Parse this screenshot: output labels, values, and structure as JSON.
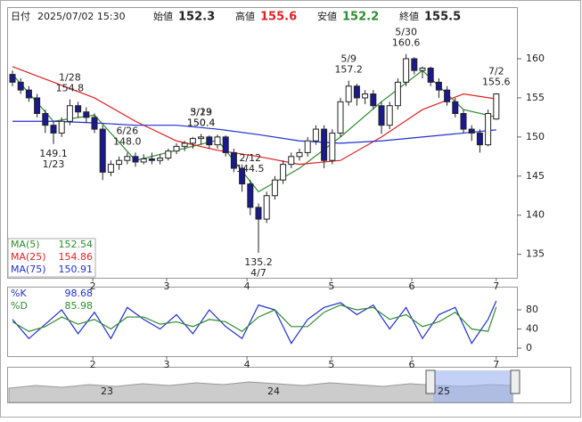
{
  "chart_data": {
    "type": "candlestick",
    "header": {
      "date_label": "日付",
      "datetime": "2025/07/02 15:30",
      "open_label": "始値",
      "open": 152.3,
      "high_label": "高値",
      "high": 155.6,
      "low_label": "安値",
      "low": 152.2,
      "close_label": "終値",
      "close": 155.5
    },
    "up_color": "#ffffff",
    "down_color": "#1a1a8c",
    "candles": [
      [
        158,
        158.5,
        156.5,
        157
      ],
      [
        157,
        157.5,
        155.5,
        156
      ],
      [
        156,
        156.5,
        154.5,
        155
      ],
      [
        155,
        155.5,
        152.5,
        153
      ],
      [
        153,
        153.5,
        150.5,
        151.5
      ],
      [
        151.5,
        152,
        149.1,
        150.5
      ],
      [
        150.5,
        152.5,
        150,
        152
      ],
      [
        152,
        154.8,
        151.5,
        154
      ],
      [
        154,
        154.5,
        152.5,
        153.2
      ],
      [
        153.2,
        153.8,
        151.8,
        152.5
      ],
      [
        152.5,
        153,
        150.5,
        151
      ],
      [
        151,
        151.5,
        144.5,
        145.5
      ],
      [
        145.5,
        147,
        145,
        146.5
      ],
      [
        146.5,
        147.5,
        145.8,
        147
      ],
      [
        147,
        148,
        146.5,
        147.5
      ],
      [
        147.5,
        148,
        146.2,
        146.8
      ],
      [
        146.8,
        147.8,
        146.5,
        147.2
      ],
      [
        147.2,
        148,
        146.5,
        147
      ],
      [
        147,
        147.8,
        146.5,
        147.3
      ],
      [
        147.3,
        148.5,
        147,
        148.2
      ],
      [
        148.2,
        149.2,
        147.8,
        148.8
      ],
      [
        148.8,
        149.5,
        148.2,
        149.2
      ],
      [
        149.2,
        150,
        148.5,
        149.8
      ],
      [
        149.8,
        150.4,
        149,
        150
      ],
      [
        150,
        150.2,
        148.5,
        149
      ],
      [
        149,
        150.3,
        148.5,
        150
      ],
      [
        150,
        150.2,
        147.5,
        148
      ],
      [
        148,
        148.5,
        145.5,
        146
      ],
      [
        146,
        146.5,
        143,
        144
      ],
      [
        144,
        144.5,
        140,
        141
      ],
      [
        141,
        141.5,
        135.2,
        139.5
      ],
      [
        139.5,
        143,
        139,
        142.5
      ],
      [
        142.5,
        145,
        142,
        144.5
      ],
      [
        144.5,
        147,
        144,
        146.5
      ],
      [
        146.5,
        148,
        146,
        147.5
      ],
      [
        147.5,
        148.5,
        147,
        148
      ],
      [
        148,
        150,
        147.5,
        149.5
      ],
      [
        149.5,
        151.5,
        149,
        151
      ],
      [
        151,
        151.5,
        146,
        147
      ],
      [
        147,
        151,
        146.5,
        150.5
      ],
      [
        150.5,
        155,
        150,
        154.5
      ],
      [
        154.5,
        157.2,
        154,
        156.5
      ],
      [
        156.5,
        156.8,
        154,
        155
      ],
      [
        155,
        156,
        154.2,
        155.5
      ],
      [
        155.5,
        156,
        153.5,
        154
      ],
      [
        154,
        154.5,
        150.4,
        151.5
      ],
      [
        151.5,
        154.5,
        151,
        154
      ],
      [
        154,
        157.5,
        153.5,
        157
      ],
      [
        157,
        160.6,
        156.5,
        160
      ],
      [
        160,
        160.2,
        158,
        158.5
      ],
      [
        158.5,
        159,
        157.5,
        158.8
      ],
      [
        158.8,
        159,
        156.5,
        157
      ],
      [
        157,
        157.5,
        155,
        156
      ],
      [
        156,
        156.5,
        154,
        154.5
      ],
      [
        154.5,
        155,
        152.5,
        153
      ],
      [
        153,
        153.5,
        150.5,
        151
      ],
      [
        151,
        151.5,
        149.5,
        150.5
      ],
      [
        150.5,
        151,
        148,
        149
      ],
      [
        149,
        153.5,
        148.8,
        153
      ],
      [
        152.3,
        155.6,
        152.2,
        155.5
      ]
    ],
    "ylim": [
      132,
      166.6
    ],
    "yticks": [
      135,
      140,
      145,
      150,
      155,
      160
    ],
    "xticks": [
      {
        "value": 9.8,
        "label": "2"
      },
      {
        "value": 18.8,
        "label": "3"
      },
      {
        "value": 28.6,
        "label": "4"
      },
      {
        "value": 38.9,
        "label": "5"
      },
      {
        "value": 48.7,
        "label": "6"
      },
      {
        "value": 59,
        "label": "7"
      }
    ],
    "annotations": [
      {
        "date": "1/28",
        "value": 154.8
      },
      {
        "date": "1/23",
        "value": 149.1
      },
      {
        "date": "2/12",
        "value": 144.5
      },
      {
        "date": "3/19",
        "value": 150.4
      },
      {
        "date": "4/7",
        "value": 135.2
      },
      {
        "date": "5/9",
        "value": 157.2
      },
      {
        "date": "5/23",
        "value": 150.4
      },
      {
        "date": "5/30",
        "value": 160.6
      },
      {
        "date": "6/26",
        "value": 148,
        "value_label": "148.0"
      },
      {
        "date": "7/2",
        "value": 155.6
      }
    ],
    "series": [
      {
        "name": "MA(5)",
        "color": "#2e8b2e",
        "last": 152.54,
        "x": [
          0,
          5,
          10,
          15,
          20,
          25,
          30,
          35,
          40,
          45,
          50,
          55,
          59
        ],
        "values": [
          158,
          152,
          152.8,
          147,
          148.3,
          149.6,
          143,
          146,
          150,
          154.5,
          158.5,
          153.5,
          152.54
        ]
      },
      {
        "name": "MA(25)",
        "color": "#e02020",
        "last": 154.86,
        "x": [
          0,
          5,
          10,
          15,
          20,
          25,
          30,
          35,
          40,
          45,
          50,
          55,
          59
        ],
        "values": [
          159,
          157,
          155,
          152,
          149.5,
          148.3,
          147.5,
          146.5,
          147,
          150,
          153.5,
          155.5,
          154.86
        ]
      },
      {
        "name": "MA(75)",
        "color": "#2030d0",
        "last": 150.91,
        "x": [
          0,
          5,
          10,
          15,
          20,
          25,
          30,
          35,
          40,
          45,
          50,
          55,
          59
        ],
        "values": [
          152,
          152,
          151.8,
          151.5,
          151.5,
          151,
          150.3,
          149.5,
          149.2,
          149.5,
          150,
          150.5,
          150.91
        ]
      }
    ],
    "oscillator": {
      "ylim": [
        -16.7,
        128.4
      ],
      "yticks": [
        0,
        40,
        80
      ],
      "series": [
        {
          "name": "%K",
          "color": "#2030d0",
          "last": 98.68,
          "x": [
            0,
            2,
            4,
            6,
            8,
            10,
            12,
            14,
            16,
            18,
            20,
            22,
            24,
            26,
            28,
            30,
            32,
            34,
            36,
            38,
            40,
            42,
            44,
            46,
            48,
            50,
            52,
            54,
            56,
            58,
            59
          ],
          "values": [
            60,
            20,
            50,
            80,
            30,
            75,
            20,
            85,
            60,
            40,
            70,
            30,
            80,
            45,
            20,
            90,
            80,
            10,
            60,
            85,
            95,
            70,
            90,
            40,
            85,
            20,
            70,
            85,
            10,
            60,
            98.68
          ]
        },
        {
          "name": "%D",
          "color": "#2e8b2e",
          "last": 85.98,
          "x": [
            0,
            2,
            4,
            6,
            8,
            10,
            12,
            14,
            16,
            18,
            20,
            22,
            24,
            26,
            28,
            30,
            32,
            34,
            36,
            38,
            40,
            42,
            44,
            46,
            48,
            50,
            52,
            54,
            56,
            58,
            59
          ],
          "values": [
            55,
            35,
            45,
            65,
            50,
            60,
            40,
            65,
            65,
            50,
            55,
            45,
            60,
            55,
            35,
            65,
            80,
            45,
            45,
            75,
            90,
            80,
            85,
            60,
            70,
            45,
            55,
            75,
            40,
            35,
            85.98
          ]
        }
      ]
    },
    "navigator": {
      "labels": [
        "23",
        "24",
        "25"
      ]
    }
  }
}
